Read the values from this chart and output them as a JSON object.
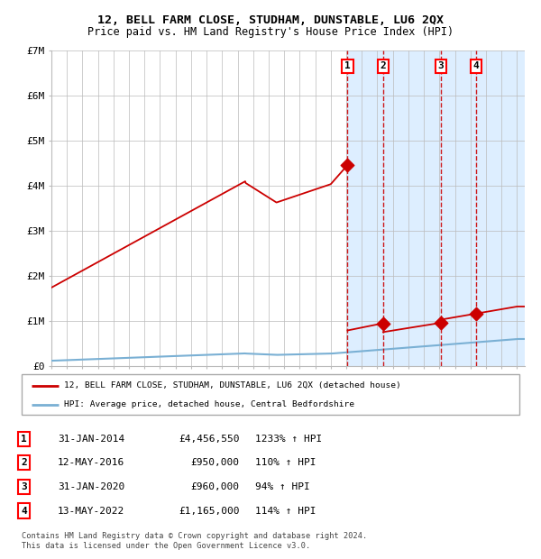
{
  "title": "12, BELL FARM CLOSE, STUDHAM, DUNSTABLE, LU6 2QX",
  "subtitle": "Price paid vs. HM Land Registry's House Price Index (HPI)",
  "legend_line1": "12, BELL FARM CLOSE, STUDHAM, DUNSTABLE, LU6 2QX (detached house)",
  "legend_line2": "HPI: Average price, detached house, Central Bedfordshire",
  "footer": "Contains HM Land Registry data © Crown copyright and database right 2024.\nThis data is licensed under the Open Government Licence v3.0.",
  "transactions": [
    {
      "label": "1",
      "date": "31-JAN-2014",
      "price": 4456550,
      "hpi_pct": "1233%",
      "x_year": 2014.08
    },
    {
      "label": "2",
      "date": "12-MAY-2016",
      "price": 950000,
      "hpi_pct": "110%",
      "x_year": 2016.36
    },
    {
      "label": "3",
      "date": "31-JAN-2020",
      "price": 960000,
      "hpi_pct": "94%",
      "x_year": 2020.08
    },
    {
      "label": "4",
      "date": "13-MAY-2022",
      "price": 1165000,
      "hpi_pct": "114%",
      "x_year": 2022.36
    }
  ],
  "hpi_color": "#7ab0d4",
  "price_color": "#cc0000",
  "background_color": "#ffffff",
  "shade_color": "#ddeeff",
  "grid_color": "#bbbbbb",
  "ylim": [
    0,
    7000000
  ],
  "xlim_start": 1995.0,
  "xlim_end": 2025.5,
  "yticks": [
    0,
    1000000,
    2000000,
    3000000,
    4000000,
    5000000,
    6000000,
    7000000
  ],
  "ytick_labels": [
    "£0",
    "£1M",
    "£2M",
    "£3M",
    "£4M",
    "£5M",
    "£6M",
    "£7M"
  ]
}
